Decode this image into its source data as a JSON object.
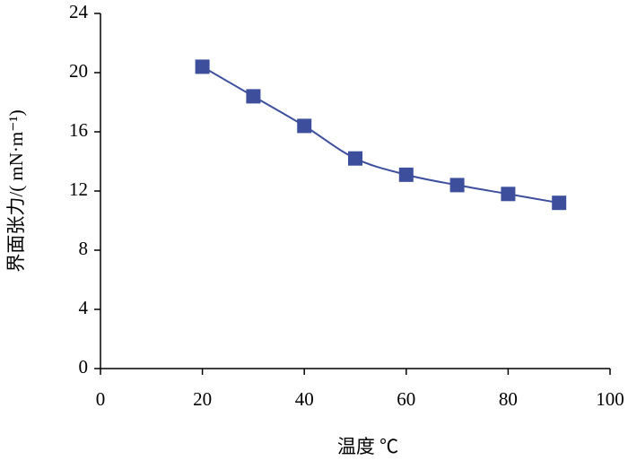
{
  "chart_data": {
    "type": "line",
    "x_label": "温度 ℃",
    "y_label": "界面张力/( mN·m⁻¹)",
    "x": [
      20,
      30,
      40,
      50,
      60,
      70,
      80,
      90
    ],
    "series": [
      {
        "color": "#3d4f9c",
        "values": [
          20.4,
          18.4,
          16.4,
          14.2,
          13.1,
          12.4,
          11.8,
          11.2
        ]
      }
    ],
    "xlim": [
      0,
      100
    ],
    "xticks": [
      0,
      20,
      40,
      60,
      80,
      100
    ],
    "ylim": [
      0,
      24
    ],
    "yticks": [
      0,
      4,
      8,
      12,
      16,
      20,
      24
    ],
    "grid": false,
    "smooth": true,
    "marker": "square"
  }
}
